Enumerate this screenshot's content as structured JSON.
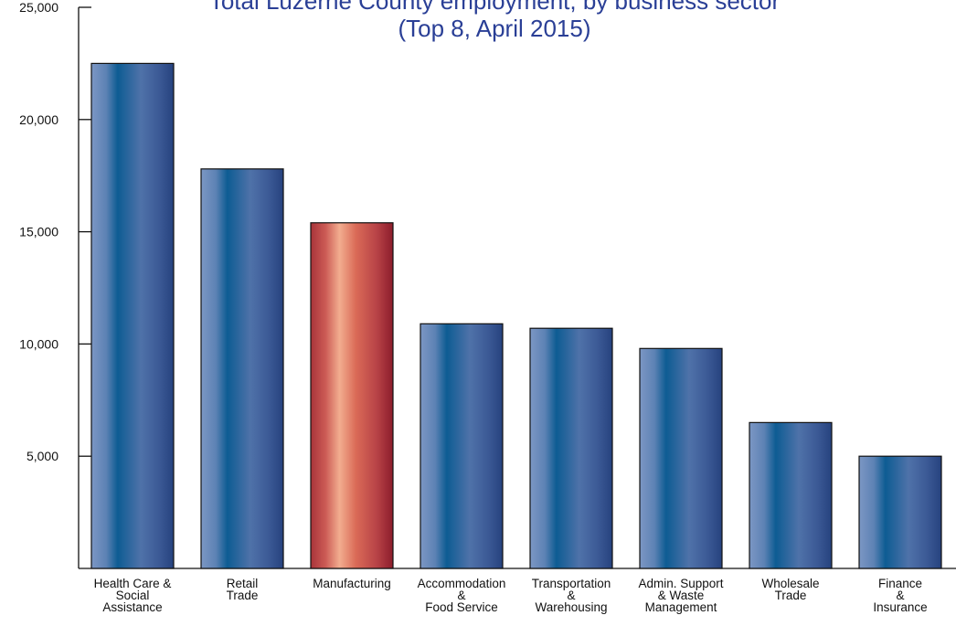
{
  "chart_data": {
    "type": "bar",
    "title": "Total Luzerne County employment, by business sector",
    "subtitle": "(Top 8, April 2015)",
    "xlabel": "",
    "ylabel": "",
    "ylim": [
      0,
      25000
    ],
    "ytick_values": [
      5000,
      10000,
      15000,
      20000,
      25000
    ],
    "ytick_labels": [
      "5,000",
      "10,000",
      "15,000",
      "20,000",
      "25,000"
    ],
    "categories": [
      [
        "Health Care &",
        "Social",
        "Assistance"
      ],
      [
        "Retail",
        "Trade"
      ],
      [
        "Manufacturing"
      ],
      [
        "Accommodation",
        "&",
        "Food Service"
      ],
      [
        "Transportation",
        "&",
        "Warehousing"
      ],
      [
        "Admin. Support",
        "& Waste",
        "Management"
      ],
      [
        "Wholesale",
        "Trade"
      ],
      [
        "Finance",
        "&",
        "Insurance"
      ]
    ],
    "values": [
      22500,
      17800,
      15400,
      10900,
      10700,
      9800,
      6500,
      5000
    ],
    "highlight_index": 2,
    "colors": {
      "blue_edge": "#6f8fc0",
      "blue_core": "#1d5a92",
      "blue_dark": "#2b4a86",
      "red_edge": "#b23a3f",
      "red_core": "#f0a888",
      "red_dark": "#8e1f2c",
      "title": "#2a3f96"
    },
    "grid": false,
    "legend": "none"
  }
}
